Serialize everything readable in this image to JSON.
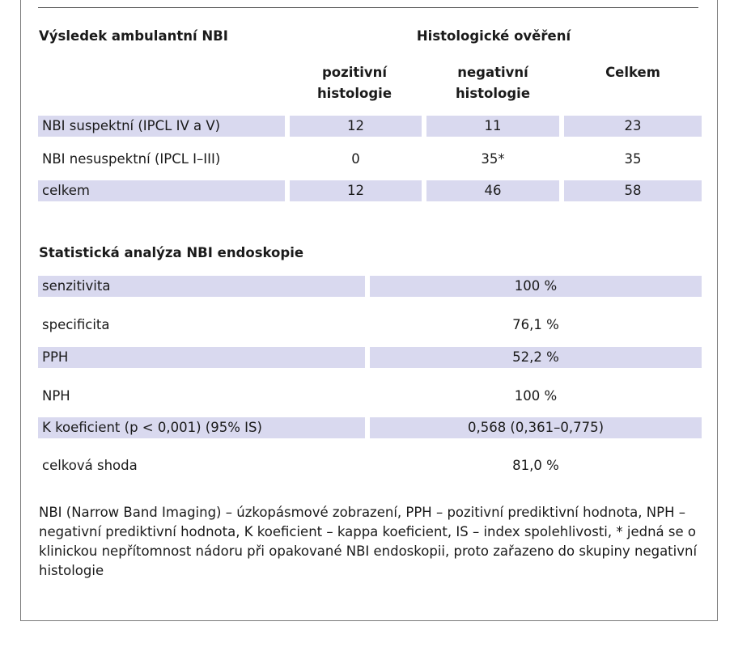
{
  "table1": {
    "header_left": "Výsledek ambulantní NBI",
    "header_group": "Histologické ověření",
    "columns": [
      {
        "line1": "pozitivní",
        "line2": "histologie"
      },
      {
        "line1": "negativní",
        "line2": "histologie"
      },
      {
        "line1": "Celkem",
        "line2": ""
      }
    ],
    "rows": [
      {
        "label": "NBI suspektní (IPCL IV a V)",
        "values": [
          "12",
          "11",
          "23"
        ]
      },
      {
        "label": "NBI nesuspektní (IPCL I–III)",
        "values": [
          "0",
          "35*",
          "35"
        ]
      },
      {
        "label": "celkem",
        "values": [
          "12",
          "46",
          "58"
        ]
      }
    ]
  },
  "table2": {
    "title": "Statistická analýza NBI endoskopie",
    "rows": [
      {
        "label": "senzitivita",
        "value": "100 %"
      },
      {
        "label": "specificita",
        "value": "76,1 %"
      },
      {
        "label": "PPH",
        "value": "52,2 %"
      },
      {
        "label": "NPH",
        "value": "100 %"
      },
      {
        "label": "Κ koeficient (p < 0,001) (95% IS)",
        "value": "0,568 (0,361–0,775)"
      },
      {
        "label": "celková shoda",
        "value": "81,0 %"
      }
    ]
  },
  "footnote": "NBI (Narrow Band Imaging) – úzkopásmové zobrazení, PPH – pozitivní prediktivní hodnota, NPH – negativní prediktivní hodnota, Κ koeficient – kappa koeficient, IS – index spolehlivosti, * jedná se o klinickou nepřítomnost nádoru při opakované NBI endoskopii, proto zařazeno do skupiny negativní histologie",
  "colors": {
    "band": "#d9d9ef",
    "rule": "#444444",
    "border": "#7a7a7a"
  }
}
